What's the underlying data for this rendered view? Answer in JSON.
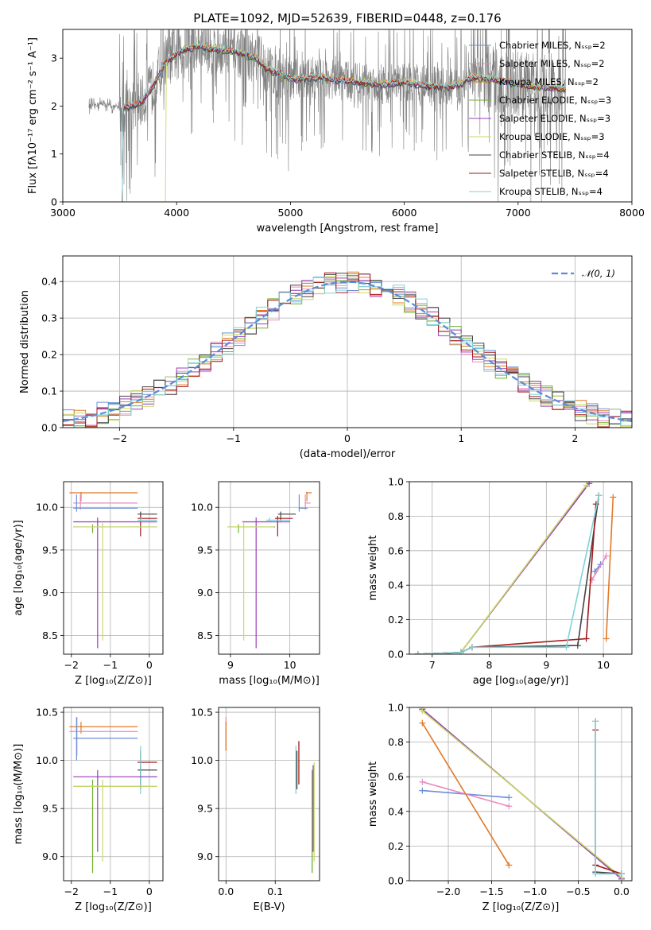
{
  "figure": {
    "title": "PLATE=1092, MJD=52639, FIBERID=0448, z=0.176"
  },
  "legend_labels": [
    "Chabrier MILES, Nₛₛₚ=2",
    "Salpeter MILES, Nₛₛₚ=2",
    "Kroupa MILES, Nₛₛₚ=2",
    "Chabrier ELODIE, Nₛₛₚ=3",
    "Salpeter ELODIE, Nₛₛₚ=3",
    "Kroupa ELODIE, Nₛₛₚ=3",
    "Chabrier STELIB, Nₛₛₚ=4",
    "Salpeter STELIB, Nₛₛₚ=4",
    "Kroupa STELIB, Nₛₛₚ=4"
  ],
  "colors": [
    "#6a8fd8",
    "#e88bbf",
    "#e07a2a",
    "#6fae2f",
    "#9a3cb8",
    "#c9d96a",
    "#444444",
    "#a31a1a",
    "#7dd3d8"
  ],
  "chart_data": [
    {
      "id": "spectrum",
      "type": "line",
      "xlabel": "wavelength [Angstrom, rest frame]",
      "ylabel": "Flux [fλ10⁻¹⁷ erg cm⁻² s⁻¹ A⁻¹]",
      "xlim": [
        3000,
        8000
      ],
      "ylim": [
        0,
        3.6
      ],
      "xticks": [
        "3000",
        "4000",
        "5000",
        "6000",
        "7000",
        "8000"
      ],
      "yticks": [
        "0",
        "1",
        "2",
        "3"
      ],
      "grid": false,
      "legend": "top-right",
      "data_wavelength_range": [
        3230,
        7420
      ],
      "model_continuum": {
        "x": [
          3230,
          3350,
          3500,
          3600,
          3700,
          3800,
          3900,
          4000,
          4100,
          4200,
          4300,
          4500,
          4700,
          4800,
          4900,
          5000,
          5200,
          5400,
          5600,
          5800,
          6000,
          6200,
          6400,
          6500,
          6600,
          6800,
          7000,
          7200,
          7420
        ],
        "y": [
          2.0,
          2.05,
          1.95,
          2.0,
          2.1,
          2.45,
          2.9,
          3.1,
          3.2,
          3.25,
          3.2,
          3.15,
          3.0,
          2.75,
          2.7,
          2.55,
          2.6,
          2.55,
          2.5,
          2.45,
          2.5,
          2.42,
          2.4,
          2.45,
          2.6,
          2.55,
          2.45,
          2.4,
          2.35
        ]
      }
    },
    {
      "id": "residuals",
      "type": "area",
      "xlabel": "(data-model)/error",
      "ylabel": "Normed distribution",
      "xlim": [
        -2.5,
        2.5
      ],
      "ylim": [
        0,
        0.47
      ],
      "xticks": [
        "−2",
        "−1",
        "0",
        "1",
        "2"
      ],
      "yticks": [
        "0.0",
        "0.1",
        "0.2",
        "0.3",
        "0.4"
      ],
      "grid": true,
      "legend": "top-right",
      "reference_curve": "𝒩(0, 1)",
      "bin_width": 0.1
    },
    {
      "id": "age_vs_Z",
      "type": "scatter",
      "xlabel": "Z [log₁₀(Z/Z⊙)]",
      "ylabel": "age  [log₁₀(age/yr)]",
      "xlim": [
        -2.2,
        0.35
      ],
      "ylim": [
        8.28,
        10.3
      ],
      "xticks": [
        "−2",
        "−1",
        "0"
      ],
      "yticks": [
        "8.5",
        "9.0",
        "9.5",
        "10.0"
      ],
      "grid": true,
      "segments": [
        {
          "s": 2,
          "x0": -2.05,
          "x1": -0.3,
          "y": 10.17,
          "v": [
            10.07,
            10.18
          ]
        },
        {
          "s": 1,
          "x0": -1.95,
          "x1": -0.3,
          "y": 10.05,
          "v": [
            9.97,
            10.15
          ]
        },
        {
          "s": 0,
          "x0": -1.95,
          "x1": -0.3,
          "y": 9.99,
          "v": [
            9.95,
            10.15
          ]
        },
        {
          "s": 6,
          "x0": -0.3,
          "x1": 0.2,
          "y": 9.92,
          "v": [
            9.84,
            9.95
          ]
        },
        {
          "s": 7,
          "x0": -0.3,
          "x1": 0.2,
          "y": 9.87,
          "v": [
            9.66,
            9.9
          ]
        },
        {
          "s": 8,
          "x0": -0.3,
          "x1": 0.2,
          "y": 9.85,
          "v": [
            9.83,
            9.88
          ]
        },
        {
          "s": 4,
          "x0": -1.95,
          "x1": 0.2,
          "y": 9.83,
          "v": [
            8.35,
            9.88
          ]
        },
        {
          "s": 3,
          "x0": -1.95,
          "x1": 0.2,
          "y": 9.77,
          "v": [
            9.7,
            9.8
          ]
        },
        {
          "s": 5,
          "x0": -1.95,
          "x1": 0.2,
          "y": 9.77,
          "v": [
            8.44,
            9.82
          ]
        }
      ]
    },
    {
      "id": "age_vs_mass",
      "type": "scatter",
      "xlabel": "mass [log₁₀(M/M⊙)]",
      "ylabel": "",
      "xlim": [
        8.8,
        10.5
      ],
      "ylim": [
        8.28,
        10.3
      ],
      "xticks": [
        "9",
        "10"
      ],
      "yticks": [
        "8.5",
        "9.0",
        "9.5",
        "10.0"
      ],
      "grid": true,
      "segments": [
        {
          "s": 2,
          "x0": 10.27,
          "x1": 10.37,
          "y": 10.17,
          "v": [
            10.07,
            10.18
          ]
        },
        {
          "s": 1,
          "x0": 10.25,
          "x1": 10.35,
          "y": 10.05,
          "v": [
            9.97,
            10.15
          ]
        },
        {
          "s": 0,
          "x0": 10.15,
          "x1": 10.3,
          "y": 9.99,
          "v": [
            9.95,
            10.15
          ]
        },
        {
          "s": 6,
          "x0": 9.8,
          "x1": 10.1,
          "y": 9.92,
          "v": [
            9.84,
            9.95
          ]
        },
        {
          "s": 7,
          "x0": 9.75,
          "x1": 10.05,
          "y": 9.87,
          "v": [
            9.66,
            9.9
          ]
        },
        {
          "s": 8,
          "x0": 9.6,
          "x1": 10.0,
          "y": 9.85,
          "v": [
            9.83,
            9.88
          ]
        },
        {
          "s": 4,
          "x0": 9.2,
          "x1": 10.0,
          "y": 9.83,
          "v": [
            8.35,
            9.88
          ]
        },
        {
          "s": 3,
          "x0": 8.95,
          "x1": 9.75,
          "y": 9.77,
          "v": [
            9.7,
            9.8
          ]
        },
        {
          "s": 5,
          "x0": 8.95,
          "x1": 9.73,
          "y": 9.77,
          "v": [
            8.44,
            9.82
          ]
        }
      ]
    },
    {
      "id": "mass_weight_vs_age",
      "type": "line",
      "xlabel": "age  [log₁₀(age/yr)]",
      "ylabel": "mass weight",
      "xlim": [
        6.6,
        10.5
      ],
      "ylim": [
        0,
        1
      ],
      "xticks": [
        "7",
        "8",
        "9",
        "10"
      ],
      "yticks": [
        "0.0",
        "0.2",
        "0.4",
        "0.6",
        "0.8",
        "1.0"
      ],
      "grid": true,
      "series": [
        {
          "s": 0,
          "x": [
            9.85,
            9.95
          ],
          "y": [
            0.48,
            0.52
          ]
        },
        {
          "s": 1,
          "x": [
            9.8,
            10.05
          ],
          "y": [
            0.43,
            0.57
          ]
        },
        {
          "s": 2,
          "x": [
            10.05,
            10.17
          ],
          "y": [
            0.09,
            0.91
          ]
        },
        {
          "s": 3,
          "x": [
            6.75,
            7.5,
            9.75
          ],
          "y": [
            0.0,
            0.01,
            0.99
          ]
        },
        {
          "s": 4,
          "x": [
            6.75,
            7.5,
            9.75
          ],
          "y": [
            0.0,
            0.01,
            0.99
          ]
        },
        {
          "s": 5,
          "x": [
            6.75,
            7.5,
            9.7
          ],
          "y": [
            0.0,
            0.01,
            0.98
          ]
        },
        {
          "s": 6,
          "x": [
            6.75,
            7.5,
            7.7,
            9.55,
            9.92
          ],
          "y": [
            0.0,
            0.01,
            0.04,
            0.05,
            0.92
          ]
        },
        {
          "s": 7,
          "x": [
            6.75,
            7.5,
            7.7,
            9.7,
            9.87
          ],
          "y": [
            0.0,
            0.01,
            0.04,
            0.09,
            0.87
          ]
        },
        {
          "s": 8,
          "x": [
            6.75,
            7.5,
            7.7,
            9.35,
            9.92
          ],
          "y": [
            0.0,
            0.01,
            0.04,
            0.04,
            0.92
          ]
        }
      ]
    },
    {
      "id": "mass_vs_Z",
      "type": "scatter",
      "xlabel": "Z [log₁₀(Z/Z⊙)]",
      "ylabel": "mass [log₁₀(M/M⊙)]",
      "xlim": [
        -2.2,
        0.35
      ],
      "ylim": [
        8.75,
        10.55
      ],
      "xticks": [
        "−2",
        "−1",
        "0"
      ],
      "yticks": [
        "9.0",
        "9.5",
        "10.0",
        "10.5"
      ],
      "grid": true,
      "segments": [
        {
          "s": 2,
          "x0": -2.05,
          "x1": -0.3,
          "y": 10.35,
          "v": [
            10.28,
            10.4
          ]
        },
        {
          "s": 1,
          "x0": -2.05,
          "x1": -0.3,
          "y": 10.3,
          "v": [
            10.05,
            10.45
          ]
        },
        {
          "s": 0,
          "x0": -1.95,
          "x1": -0.3,
          "y": 10.23,
          "v": [
            10.0,
            10.45
          ]
        },
        {
          "s": 7,
          "x0": -0.3,
          "x1": 0.2,
          "y": 9.98,
          "v": [
            9.7,
            10.1
          ]
        },
        {
          "s": 6,
          "x0": -0.3,
          "x1": 0.2,
          "y": 9.9,
          "v": [
            9.75,
            9.95
          ]
        },
        {
          "s": 8,
          "x0": -0.3,
          "x1": 0.2,
          "y": 9.83,
          "v": [
            9.65,
            10.15
          ]
        },
        {
          "s": 4,
          "x0": -1.95,
          "x1": 0.2,
          "y": 9.83,
          "v": [
            9.05,
            9.9
          ]
        },
        {
          "s": 3,
          "x0": -1.95,
          "x1": 0.2,
          "y": 9.73,
          "v": [
            8.83,
            9.8
          ]
        },
        {
          "s": 5,
          "x0": -1.95,
          "x1": 0.2,
          "y": 9.73,
          "v": [
            8.95,
            9.8
          ]
        }
      ]
    },
    {
      "id": "mass_vs_ebv",
      "type": "scatter",
      "xlabel": "E(B-V)",
      "ylabel": "",
      "xlim": [
        -0.015,
        0.19
      ],
      "ylim": [
        8.75,
        10.55
      ],
      "xticks": [
        "0.0",
        "0.1"
      ],
      "yticks": [
        "9.0",
        "9.5",
        "10.0",
        "10.5"
      ],
      "grid": true,
      "bars": [
        {
          "s": 1,
          "x": 0.0,
          "v": [
            10.1,
            10.45
          ]
        },
        {
          "s": 2,
          "x": 0.0,
          "v": [
            10.1,
            10.4
          ]
        },
        {
          "s": 8,
          "x": 0.142,
          "v": [
            9.65,
            10.15
          ]
        },
        {
          "s": 6,
          "x": 0.144,
          "v": [
            9.7,
            10.1
          ]
        },
        {
          "s": 7,
          "x": 0.148,
          "v": [
            9.75,
            10.2
          ]
        },
        {
          "s": 3,
          "x": 0.175,
          "v": [
            8.83,
            9.9
          ]
        },
        {
          "s": 4,
          "x": 0.177,
          "v": [
            9.05,
            9.95
          ]
        },
        {
          "s": 5,
          "x": 0.179,
          "v": [
            8.95,
            9.98
          ]
        }
      ]
    },
    {
      "id": "mass_weight_vs_Z",
      "type": "line",
      "xlabel": "Z [log₁₀(Z/Z⊙)]",
      "ylabel": "mass weight",
      "xlim": [
        -2.45,
        0.12
      ],
      "ylim": [
        0,
        1
      ],
      "xticks": [
        "−2.0",
        "−1.5",
        "−1.0",
        "−0.5",
        "0.0"
      ],
      "yticks": [
        "0.0",
        "0.2",
        "0.4",
        "0.6",
        "0.8",
        "1.0"
      ],
      "grid": true,
      "series": [
        {
          "s": 0,
          "x": [
            -2.3,
            -1.3
          ],
          "y": [
            0.52,
            0.48
          ]
        },
        {
          "s": 1,
          "x": [
            -2.3,
            -1.3
          ],
          "y": [
            0.57,
            0.43
          ]
        },
        {
          "s": 2,
          "x": [
            -2.3,
            -1.3
          ],
          "y": [
            0.91,
            0.09
          ]
        },
        {
          "s": 3,
          "x": [
            -2.3,
            0.0
          ],
          "y": [
            0.99,
            0.01
          ]
        },
        {
          "s": 4,
          "x": [
            -2.3,
            0.0
          ],
          "y": [
            0.99,
            0.01
          ]
        },
        {
          "s": 5,
          "x": [
            -2.3,
            0.0
          ],
          "y": [
            0.98,
            0.02
          ]
        },
        {
          "s": 6,
          "x": [
            -0.3,
            -0.3,
            0.0
          ],
          "y": [
            0.92,
            0.05,
            0.04
          ]
        },
        {
          "s": 7,
          "x": [
            -0.3,
            -0.3,
            0.0
          ],
          "y": [
            0.87,
            0.09,
            0.04
          ]
        },
        {
          "s": 8,
          "x": [
            -0.3,
            -0.3,
            0.0
          ],
          "y": [
            0.92,
            0.04,
            0.04
          ]
        }
      ]
    }
  ]
}
